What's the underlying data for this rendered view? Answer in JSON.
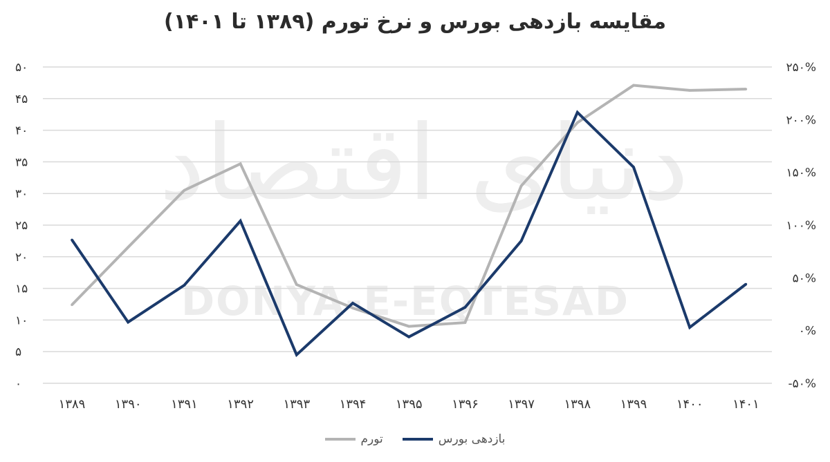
{
  "title": "مقایسه بازدهی بورس و نرخ تورم (۱۳۸۹ تا ۱۴۰۱)",
  "watermark": {
    "latin": "DONYA-E-EQTESAD",
    "persian": "دنیای اقتصاد"
  },
  "colors": {
    "inflation": "#b4b4b4",
    "returns": "#1b3a6b",
    "grid": "#d9d9d9",
    "tick_text": "#333333"
  },
  "chart_data": {
    "type": "line",
    "title": "مقایسه بازدهی بورس و نرخ تورم (۱۳۸۹ تا ۱۴۰۱)",
    "categories": [
      "۱۳۸۹",
      "۱۳۹۰",
      "۱۳۹۱",
      "۱۳۹۲",
      "۱۳۹۳",
      "۱۳۹۴",
      "۱۳۹۵",
      "۱۳۹۶",
      "۱۳۹۷",
      "۱۳۹۸",
      "۱۳۹۹",
      "۱۴۰۰",
      "۱۴۰۱"
    ],
    "y_left": {
      "ylim": [
        0,
        50
      ],
      "ticks": [
        0,
        5,
        10,
        15,
        20,
        25,
        30,
        35,
        40,
        45,
        50
      ],
      "tick_labels": [
        "۰",
        "۵",
        "۱۰",
        "۱۵",
        "۲۰",
        "۲۵",
        "۳۰",
        "۳۵",
        "۴۰",
        "۴۵",
        "۵۰"
      ]
    },
    "y_right": {
      "ylim": [
        -50,
        250
      ],
      "ticks": [
        -50,
        0,
        50,
        100,
        150,
        200,
        250
      ],
      "tick_labels": [
        "-۵۰%",
        "۰%",
        "۵۰%",
        "۱۰۰%",
        "۱۵۰%",
        "۲۰۰%",
        "۲۵۰%"
      ]
    },
    "series": [
      {
        "name": "تورم",
        "axis": "left",
        "values": [
          12.4,
          21.5,
          30.5,
          34.7,
          15.6,
          11.9,
          9.0,
          9.6,
          31.2,
          41.2,
          47.1,
          46.3,
          46.5
        ]
      },
      {
        "name": "بازدهی بورس",
        "axis": "right",
        "values": [
          86,
          8,
          43,
          104,
          -23,
          26,
          -6,
          22,
          85,
          207,
          155,
          3,
          44
        ]
      }
    ],
    "grid": true,
    "legend": "bottom"
  }
}
